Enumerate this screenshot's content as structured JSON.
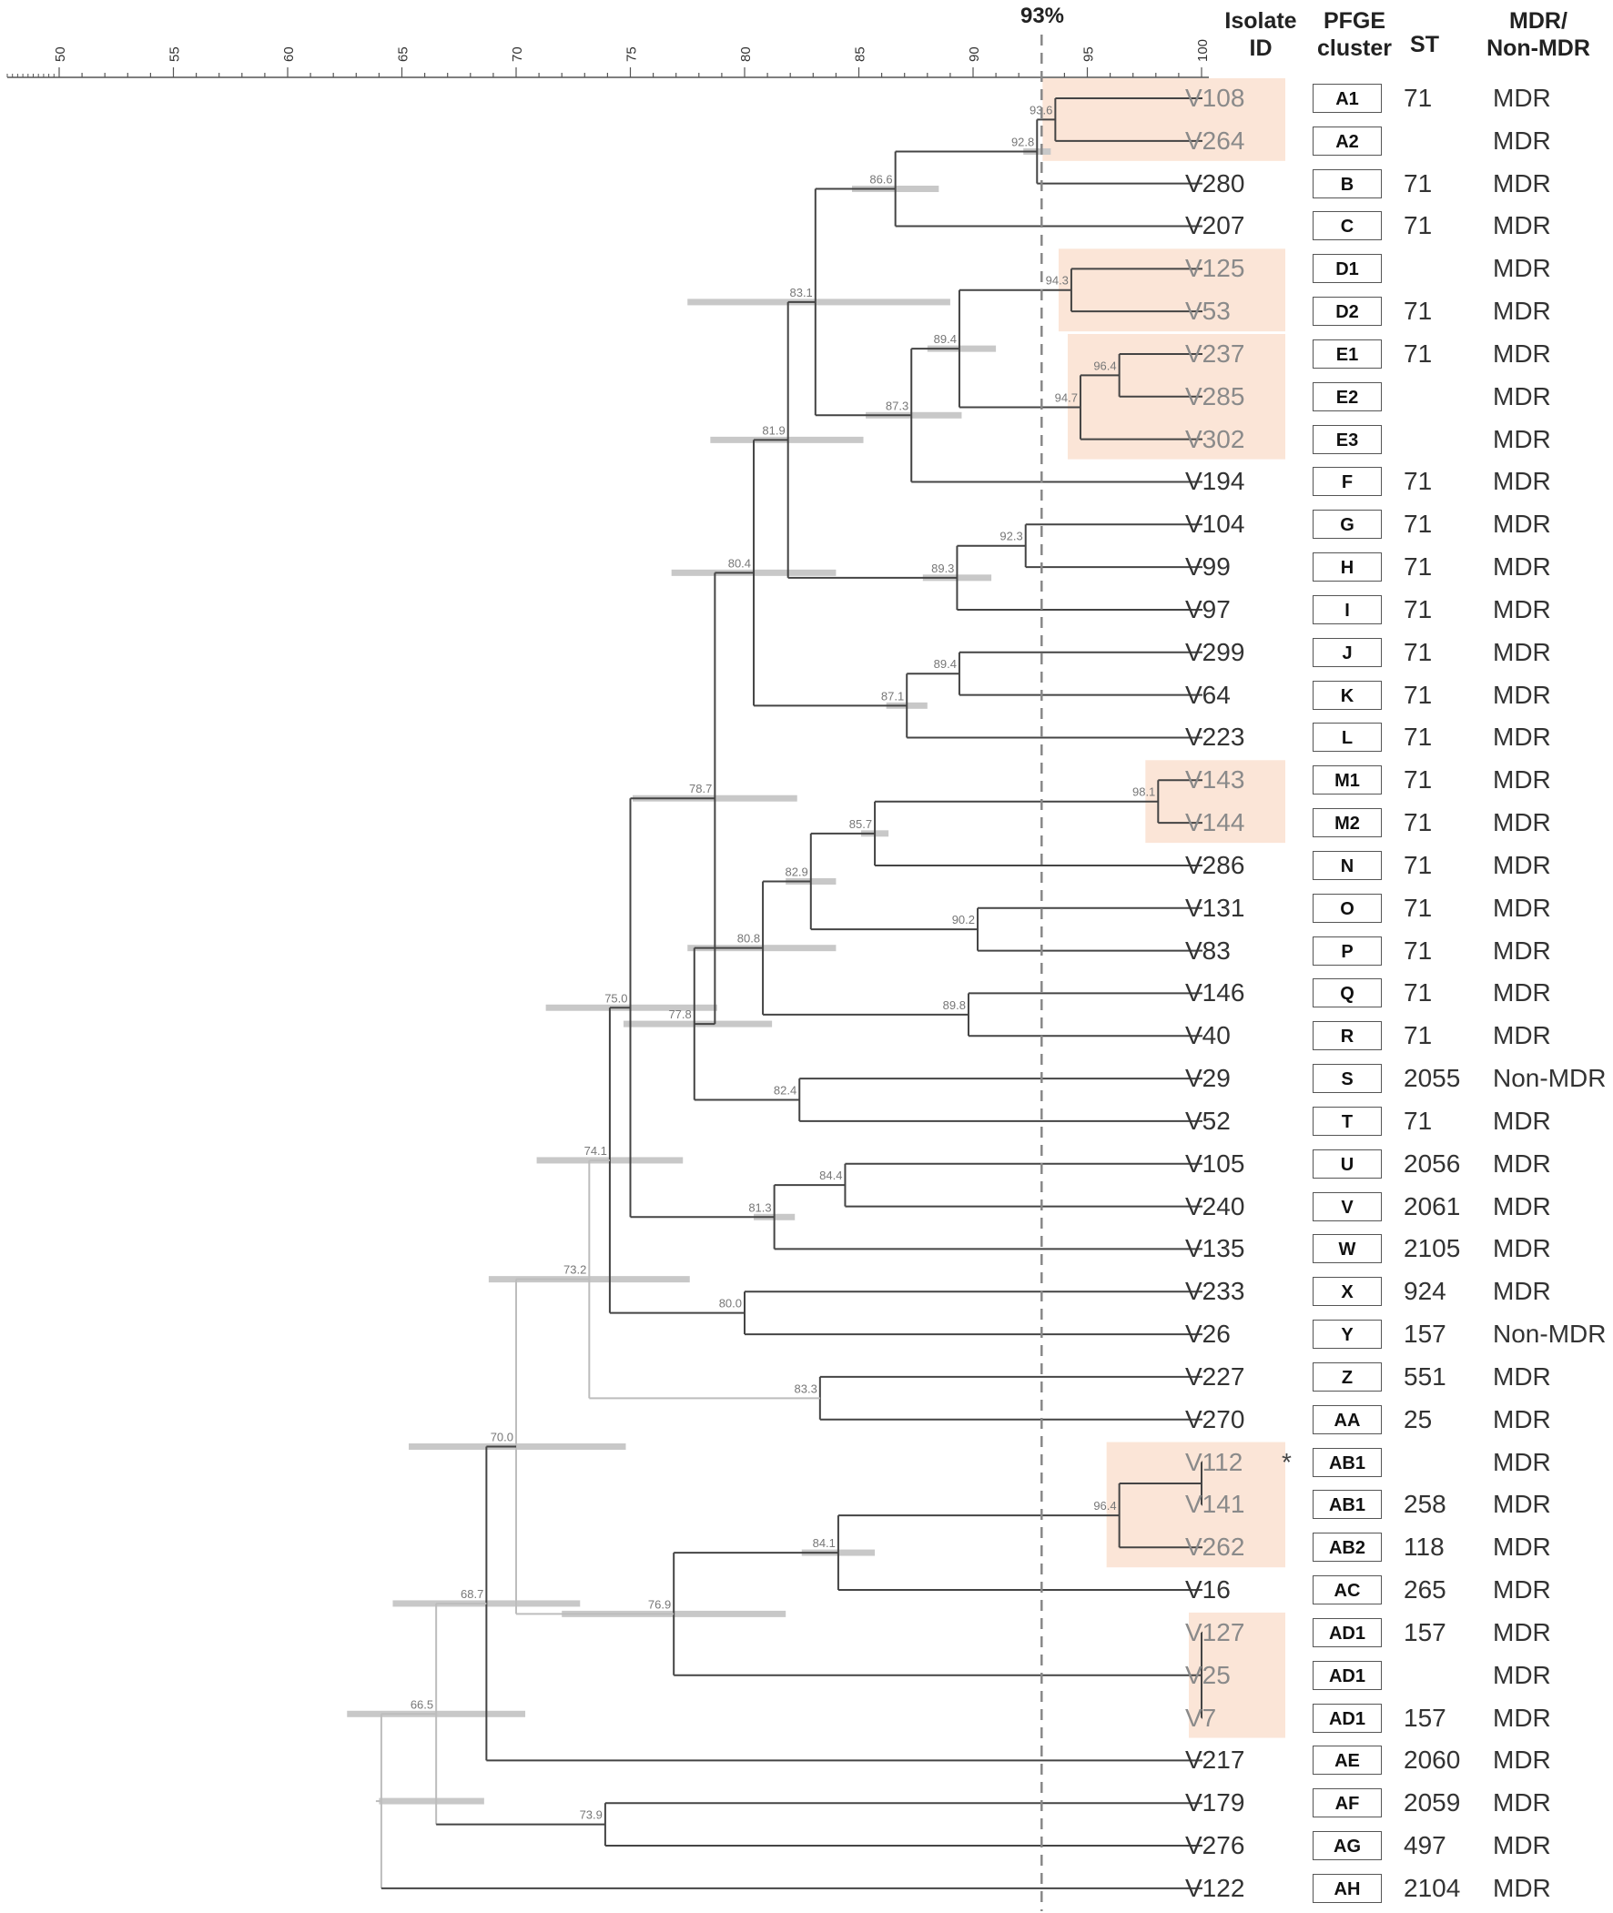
{
  "headers": {
    "threshold": "93%",
    "isolate": [
      "Isolate",
      "ID"
    ],
    "pfge": [
      "PFGE",
      "cluster"
    ],
    "st": "ST",
    "mdr": [
      "MDR/",
      "Non-MDR"
    ]
  },
  "axis": {
    "min": 50,
    "max": 100,
    "ticks": [
      50,
      55,
      60,
      65,
      70,
      75,
      80,
      85,
      90,
      95,
      100
    ],
    "threshold": 93
  },
  "rows": [
    {
      "id": "V108",
      "cluster": "A1",
      "st": "71",
      "mdr": "MDR",
      "highlight": true
    },
    {
      "id": "V264",
      "cluster": "A2",
      "st": "",
      "mdr": "MDR",
      "highlight": true
    },
    {
      "id": "V280",
      "cluster": "B",
      "st": "71",
      "mdr": "MDR",
      "highlight": false
    },
    {
      "id": "V207",
      "cluster": "C",
      "st": "71",
      "mdr": "MDR",
      "highlight": false
    },
    {
      "id": "V125",
      "cluster": "D1",
      "st": "",
      "mdr": "MDR",
      "highlight": true
    },
    {
      "id": "V53",
      "cluster": "D2",
      "st": "71",
      "mdr": "MDR",
      "highlight": true
    },
    {
      "id": "V237",
      "cluster": "E1",
      "st": "71",
      "mdr": "MDR",
      "highlight": true
    },
    {
      "id": "V285",
      "cluster": "E2",
      "st": "",
      "mdr": "MDR",
      "highlight": true
    },
    {
      "id": "V302",
      "cluster": "E3",
      "st": "",
      "mdr": "MDR",
      "highlight": true
    },
    {
      "id": "V194",
      "cluster": "F",
      "st": "71",
      "mdr": "MDR",
      "highlight": false
    },
    {
      "id": "V104",
      "cluster": "G",
      "st": "71",
      "mdr": "MDR",
      "highlight": false
    },
    {
      "id": "V99",
      "cluster": "H",
      "st": "71",
      "mdr": "MDR",
      "highlight": false
    },
    {
      "id": "V97",
      "cluster": "I",
      "st": "71",
      "mdr": "MDR",
      "highlight": false
    },
    {
      "id": "V299",
      "cluster": "J",
      "st": "71",
      "mdr": "MDR",
      "highlight": false
    },
    {
      "id": "V64",
      "cluster": "K",
      "st": "71",
      "mdr": "MDR",
      "highlight": false
    },
    {
      "id": "V223",
      "cluster": "L",
      "st": "71",
      "mdr": "MDR",
      "highlight": false
    },
    {
      "id": "V143",
      "cluster": "M1",
      "st": "71",
      "mdr": "MDR",
      "highlight": true
    },
    {
      "id": "V144",
      "cluster": "M2",
      "st": "71",
      "mdr": "MDR",
      "highlight": true
    },
    {
      "id": "V286",
      "cluster": "N",
      "st": "71",
      "mdr": "MDR",
      "highlight": false
    },
    {
      "id": "V131",
      "cluster": "O",
      "st": "71",
      "mdr": "MDR",
      "highlight": false
    },
    {
      "id": "V83",
      "cluster": "P",
      "st": "71",
      "mdr": "MDR",
      "highlight": false
    },
    {
      "id": "V146",
      "cluster": "Q",
      "st": "71",
      "mdr": "MDR",
      "highlight": false
    },
    {
      "id": "V40",
      "cluster": "R",
      "st": "71",
      "mdr": "MDR",
      "highlight": false
    },
    {
      "id": "V29",
      "cluster": "S",
      "st": "2055",
      "mdr": "Non-MDR",
      "highlight": false
    },
    {
      "id": "V52",
      "cluster": "T",
      "st": "71",
      "mdr": "MDR",
      "highlight": false
    },
    {
      "id": "V105",
      "cluster": "U",
      "st": "2056",
      "mdr": "MDR",
      "highlight": false
    },
    {
      "id": "V240",
      "cluster": "V",
      "st": "2061",
      "mdr": "MDR",
      "highlight": false
    },
    {
      "id": "V135",
      "cluster": "W",
      "st": "2105",
      "mdr": "MDR",
      "highlight": false
    },
    {
      "id": "V233",
      "cluster": "X",
      "st": "924",
      "mdr": "MDR",
      "highlight": false
    },
    {
      "id": "V26",
      "cluster": "Y",
      "st": "157",
      "mdr": "Non-MDR",
      "highlight": false
    },
    {
      "id": "V227",
      "cluster": "Z",
      "st": "551",
      "mdr": "MDR",
      "highlight": false
    },
    {
      "id": "V270",
      "cluster": "AA",
      "st": "25",
      "mdr": "MDR",
      "highlight": false
    },
    {
      "id": "V112",
      "cluster": "AB1",
      "st": "",
      "mdr": "MDR",
      "highlight": true,
      "mark": "*"
    },
    {
      "id": "V141",
      "cluster": "AB1",
      "st": "258",
      "mdr": "MDR",
      "highlight": true
    },
    {
      "id": "V262",
      "cluster": "AB2",
      "st": "118",
      "mdr": "MDR",
      "highlight": true
    },
    {
      "id": "V16",
      "cluster": "AC",
      "st": "265",
      "mdr": "MDR",
      "highlight": false
    },
    {
      "id": "V127",
      "cluster": "AD1",
      "st": "157",
      "mdr": "MDR",
      "highlight": true
    },
    {
      "id": "V25",
      "cluster": "AD1",
      "st": "",
      "mdr": "MDR",
      "highlight": true
    },
    {
      "id": "V7",
      "cluster": "AD1",
      "st": "157",
      "mdr": "MDR",
      "highlight": true
    },
    {
      "id": "V217",
      "cluster": "AE",
      "st": "2060",
      "mdr": "MDR",
      "highlight": false
    },
    {
      "id": "V179",
      "cluster": "AF",
      "st": "2059",
      "mdr": "MDR",
      "highlight": false
    },
    {
      "id": "V276",
      "cluster": "AG",
      "st": "497",
      "mdr": "MDR",
      "highlight": false
    },
    {
      "id": "V122",
      "cluster": "AH",
      "st": "2104",
      "mdr": "MDR",
      "highlight": false
    }
  ],
  "highlight_groups": [
    {
      "from": 0,
      "to": 1
    },
    {
      "from": 4,
      "to": 5
    },
    {
      "from": 6,
      "to": 8
    },
    {
      "from": 16,
      "to": 17
    },
    {
      "from": 32,
      "to": 34
    },
    {
      "from": 36,
      "to": 38
    }
  ],
  "nodes": [
    {
      "label": "93.6",
      "value": 93.6,
      "children": [
        {
          "leaf": 0
        },
        {
          "leaf": 1
        }
      ]
    },
    {
      "label": "92.8",
      "value": 92.8,
      "children": [
        {
          "node": 0
        },
        {
          "leaf": 2
        }
      ],
      "err": [
        93.4,
        92.2
      ]
    },
    {
      "label": "86.6",
      "value": 86.6,
      "children": [
        {
          "node": 1
        },
        {
          "leaf": 3
        }
      ],
      "err": [
        88.5,
        84.7
      ]
    },
    {
      "label": "94.3",
      "value": 94.3,
      "children": [
        {
          "leaf": 4
        },
        {
          "leaf": 5
        }
      ]
    },
    {
      "label": "96.4",
      "value": 96.4,
      "children": [
        {
          "leaf": 6
        },
        {
          "leaf": 7
        }
      ]
    },
    {
      "label": "94.7",
      "value": 94.7,
      "children": [
        {
          "node": 4
        },
        {
          "leaf": 8
        }
      ]
    },
    {
      "label": "89.4",
      "value": 89.4,
      "children": [
        {
          "node": 3
        },
        {
          "node": 5
        }
      ],
      "err": [
        91.0,
        88.0
      ]
    },
    {
      "label": "87.3",
      "value": 87.3,
      "children": [
        {
          "node": 6
        },
        {
          "leaf": 9
        }
      ],
      "err": [
        89.5,
        85.3
      ]
    },
    {
      "label": "83.1",
      "value": 83.1,
      "children": [
        {
          "node": 2
        },
        {
          "node": 7
        }
      ],
      "err": [
        89.0,
        77.5
      ]
    },
    {
      "label": "92.3",
      "value": 92.3,
      "children": [
        {
          "leaf": 10
        },
        {
          "leaf": 11
        }
      ]
    },
    {
      "label": "89.3",
      "value": 89.3,
      "children": [
        {
          "node": 9
        },
        {
          "leaf": 12
        }
      ],
      "err": [
        90.8,
        87.8
      ]
    },
    {
      "label": "81.9",
      "value": 81.9,
      "children": [
        {
          "node": 8
        },
        {
          "node": 10
        }
      ],
      "err": [
        85.2,
        78.5
      ]
    },
    {
      "label": "89.4",
      "value": 89.4,
      "children": [
        {
          "leaf": 13
        },
        {
          "leaf": 14
        }
      ]
    },
    {
      "label": "87.1",
      "value": 87.1,
      "children": [
        {
          "node": 12
        },
        {
          "leaf": 15
        }
      ],
      "err": [
        88.0,
        86.2
      ]
    },
    {
      "label": "80.4",
      "value": 80.4,
      "children": [
        {
          "node": 11
        },
        {
          "node": 13
        }
      ],
      "err": [
        84.0,
        76.8
      ]
    },
    {
      "label": "98.1",
      "value": 98.1,
      "children": [
        {
          "leaf": 16
        },
        {
          "leaf": 17
        }
      ]
    },
    {
      "label": "85.7",
      "value": 85.7,
      "children": [
        {
          "node": 15
        },
        {
          "leaf": 18
        }
      ],
      "err": [
        86.3,
        85.1
      ]
    },
    {
      "label": "90.2",
      "value": 90.2,
      "children": [
        {
          "leaf": 19
        },
        {
          "leaf": 20
        }
      ]
    },
    {
      "label": "82.9",
      "value": 82.9,
      "children": [
        {
          "node": 16
        },
        {
          "node": 17
        }
      ],
      "err": [
        84.0,
        81.8
      ]
    },
    {
      "label": "89.8",
      "value": 89.8,
      "children": [
        {
          "leaf": 21
        },
        {
          "leaf": 22
        }
      ]
    },
    {
      "label": "80.8",
      "value": 80.8,
      "children": [
        {
          "node": 18
        },
        {
          "node": 19
        }
      ],
      "err": [
        84.0,
        77.5
      ]
    },
    {
      "label": "82.4",
      "value": 82.4,
      "children": [
        {
          "leaf": 23
        },
        {
          "leaf": 24
        }
      ]
    },
    {
      "label": "77.8",
      "value": 77.8,
      "children": [
        {
          "node": 20
        },
        {
          "node": 21
        }
      ],
      "err": [
        81.2,
        74.7
      ]
    },
    {
      "label": "78.7",
      "value": 78.7,
      "children": [
        {
          "node": 14
        },
        {
          "node": 22
        }
      ],
      "err": [
        82.3,
        75.1
      ]
    },
    {
      "label": "84.4",
      "value": 84.4,
      "children": [
        {
          "leaf": 25
        },
        {
          "leaf": 26
        }
      ]
    },
    {
      "label": "81.3",
      "value": 81.3,
      "children": [
        {
          "node": 24
        },
        {
          "leaf": 27
        }
      ],
      "err": [
        82.2,
        80.4
      ]
    },
    {
      "label": "75.0",
      "value": 75.0,
      "children": [
        {
          "node": 23
        },
        {
          "node": 25
        }
      ],
      "err": [
        78.8,
        71.3
      ]
    },
    {
      "label": "80.0",
      "value": 80.0,
      "children": [
        {
          "leaf": 28
        },
        {
          "leaf": 29
        }
      ]
    },
    {
      "label": "74.1",
      "value": 74.1,
      "children": [
        {
          "node": 26
        },
        {
          "node": 27
        }
      ],
      "err": [
        77.3,
        70.9
      ]
    },
    {
      "label": "83.3",
      "value": 83.3,
      "children": [
        {
          "leaf": 30
        },
        {
          "leaf": 31
        }
      ]
    },
    {
      "label": "73.2",
      "value": 73.2,
      "children": [
        {
          "node": 28
        },
        {
          "node": 29
        }
      ],
      "err": [
        77.6,
        68.8
      ]
    },
    {
      "label": "",
      "value": 100,
      "children": [
        {
          "leaf": 32
        },
        {
          "leaf": 33
        }
      ]
    },
    {
      "label": "96.4",
      "value": 96.4,
      "children": [
        {
          "node": 31
        },
        {
          "leaf": 34
        }
      ]
    },
    {
      "label": "84.1",
      "value": 84.1,
      "children": [
        {
          "node": 32
        },
        {
          "leaf": 35
        }
      ],
      "err": [
        85.7,
        82.5
      ]
    },
    {
      "label": "",
      "value": 100,
      "children": [
        {
          "leaf": 36
        },
        {
          "leaf": 37
        },
        {
          "leaf": 38
        }
      ]
    },
    {
      "label": "76.9",
      "value": 76.9,
      "children": [
        {
          "node": 33
        },
        {
          "node": 34
        }
      ],
      "err": [
        81.8,
        72.0
      ]
    },
    {
      "label": "70.0",
      "value": 70.0,
      "children": [
        {
          "node": 30
        },
        {
          "node": 35
        }
      ],
      "err": [
        74.8,
        65.3
      ]
    },
    {
      "label": "68.7",
      "value": 68.7,
      "children": [
        {
          "node": 36
        },
        {
          "leaf": 39
        }
      ],
      "err": [
        72.8,
        64.6
      ]
    },
    {
      "label": "73.9",
      "value": 73.9,
      "children": [
        {
          "leaf": 40
        },
        {
          "leaf": 41
        }
      ]
    },
    {
      "label": "66.5",
      "value": 66.5,
      "children": [
        {
          "node": 37
        },
        {
          "node": 38
        }
      ],
      "err": [
        70.4,
        62.6
      ]
    },
    {
      "label": "",
      "value": 64.1,
      "children": [
        {
          "node": 39
        },
        {
          "leaf": 42
        }
      ],
      "err": [
        68.6,
        64.0
      ]
    }
  ],
  "root_node": 40,
  "colors": {
    "highlight": "#fbe5d7",
    "branch": "#444444",
    "light_branch": "#bdbdbd",
    "error_bar": "#c8c8c8",
    "threshold": "#888888",
    "node_label": "#777777",
    "highlight_text": "#8a8a8a"
  }
}
